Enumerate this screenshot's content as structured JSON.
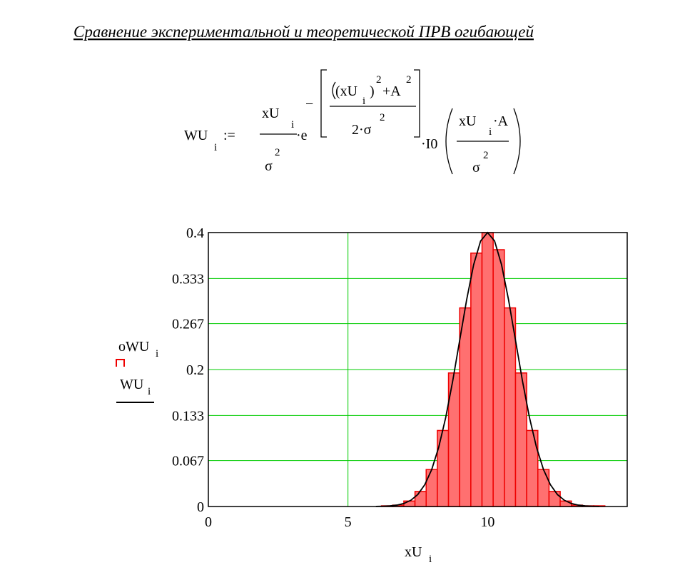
{
  "heading": "Сравнение экспериментальной и теоретической ПРВ огибающей",
  "formula": {
    "parts": [
      "WU",
      "i",
      ":=",
      "xU",
      "i",
      "σ",
      "2",
      "·e",
      "−",
      "(xU",
      "i",
      ")",
      "2",
      "+A",
      "2",
      "2·σ",
      "2",
      "·I0",
      "xU",
      "i",
      "·A",
      "σ",
      "2"
    ]
  },
  "chart_data": {
    "type": "histogram",
    "xlabel": "xU",
    "xlabel_subscript": "i",
    "bins": [
      6.2,
      6.6,
      7.0,
      7.4,
      7.8,
      8.2,
      8.6,
      9.0,
      9.4,
      9.8,
      10.2,
      10.6,
      11.0,
      11.4,
      11.8,
      12.2,
      12.6,
      13.0,
      13.4,
      13.8,
      14.2
    ],
    "series": [
      {
        "name": "oWU",
        "subscript": "i",
        "color": "#ee0000",
        "fill": "#ff7070",
        "values": [
          0.001,
          0.002,
          0.008,
          0.022,
          0.054,
          0.111,
          0.195,
          0.29,
          0.37,
          0.4,
          0.375,
          0.29,
          0.195,
          0.111,
          0.054,
          0.022,
          0.008,
          0.002,
          0.001,
          0.001
        ]
      },
      {
        "name": "WU",
        "subscript": "i",
        "color": "#000000",
        "type": "line",
        "x": [
          6.0,
          6.25,
          6.5,
          6.75,
          7.0,
          7.25,
          7.5,
          7.75,
          8.0,
          8.25,
          8.5,
          8.75,
          9.0,
          9.25,
          9.5,
          9.75,
          10.0,
          10.25,
          10.5,
          10.75,
          11.0,
          11.25,
          11.5,
          11.75,
          12.0,
          12.25,
          12.5,
          12.75,
          13.0,
          13.25,
          13.5,
          13.75,
          14.0
        ],
        "values": [
          0.0001,
          0.0004,
          0.0009,
          0.002,
          0.0044,
          0.0091,
          0.0175,
          0.0318,
          0.0541,
          0.0866,
          0.1299,
          0.1831,
          0.2426,
          0.3019,
          0.353,
          0.3877,
          0.4,
          0.3877,
          0.353,
          0.3019,
          0.2426,
          0.1831,
          0.1299,
          0.0866,
          0.0541,
          0.0318,
          0.0175,
          0.0091,
          0.0044,
          0.002,
          0.0009,
          0.0004,
          0.0001
        ]
      }
    ],
    "xlim": [
      0,
      15
    ],
    "xticks": [
      0,
      5,
      10
    ],
    "ylim": [
      0,
      0.4
    ],
    "yticks": [
      0,
      0.067,
      0.133,
      0.2,
      0.267,
      0.333,
      0.4
    ],
    "grid": true,
    "grid_color": "#00cc00"
  }
}
